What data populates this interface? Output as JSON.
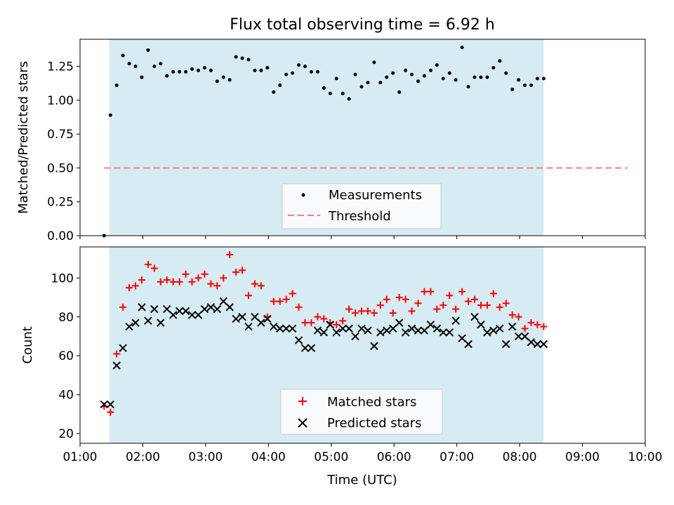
{
  "chart_data": [
    {
      "type": "scatter",
      "title": "Flux total observing time = 6.92 h",
      "xlabel": "",
      "ylabel": "Matched/Predicted stars",
      "xlim": [
        "01:00",
        "10:00"
      ],
      "ylim": [
        0,
        1.45
      ],
      "yticks": [
        "0.00",
        "0.25",
        "0.50",
        "0.75",
        "1.00",
        "1.25"
      ],
      "shaded_region": {
        "x0": "01:28",
        "x1": "08:23",
        "color": "#add8e6"
      },
      "legend": {
        "placement": "bottom-center",
        "entries": [
          "Measurements",
          "Threshold"
        ]
      },
      "series": [
        {
          "name": "Measurements",
          "color": "#000000",
          "marker": "dot",
          "points": [
            [
              "01:23",
              0.0
            ],
            [
              "01:29",
              0.89
            ],
            [
              "01:35",
              1.11
            ],
            [
              "01:41",
              1.33
            ],
            [
              "01:47",
              1.27
            ],
            [
              "01:53",
              1.25
            ],
            [
              "01:59",
              1.17
            ],
            [
              "02:05",
              1.37
            ],
            [
              "02:11",
              1.25
            ],
            [
              "02:17",
              1.27
            ],
            [
              "02:23",
              1.18
            ],
            [
              "02:29",
              1.21
            ],
            [
              "02:35",
              1.21
            ],
            [
              "02:41",
              1.21
            ],
            [
              "02:47",
              1.23
            ],
            [
              "02:53",
              1.22
            ],
            [
              "02:59",
              1.24
            ],
            [
              "03:05",
              1.22
            ],
            [
              "03:11",
              1.14
            ],
            [
              "03:17",
              1.17
            ],
            [
              "03:23",
              1.15
            ],
            [
              "03:29",
              1.32
            ],
            [
              "03:35",
              1.31
            ],
            [
              "03:41",
              1.3
            ],
            [
              "03:47",
              1.22
            ],
            [
              "03:53",
              1.22
            ],
            [
              "03:59",
              1.24
            ],
            [
              "04:05",
              1.06
            ],
            [
              "04:11",
              1.11
            ],
            [
              "04:17",
              1.19
            ],
            [
              "04:23",
              1.2
            ],
            [
              "04:29",
              1.26
            ],
            [
              "04:35",
              1.25
            ],
            [
              "04:41",
              1.21
            ],
            [
              "04:47",
              1.21
            ],
            [
              "04:53",
              1.09
            ],
            [
              "04:59",
              1.05
            ],
            [
              "05:05",
              1.16
            ],
            [
              "05:11",
              1.05
            ],
            [
              "05:17",
              1.01
            ],
            [
              "05:23",
              1.19
            ],
            [
              "05:29",
              1.1
            ],
            [
              "05:35",
              1.13
            ],
            [
              "05:41",
              1.28
            ],
            [
              "05:47",
              1.13
            ],
            [
              "05:53",
              1.17
            ],
            [
              "05:59",
              1.2
            ],
            [
              "06:05",
              1.06
            ],
            [
              "06:11",
              1.22
            ],
            [
              "06:17",
              1.19
            ],
            [
              "06:23",
              1.14
            ],
            [
              "06:29",
              1.18
            ],
            [
              "06:35",
              1.22
            ],
            [
              "06:41",
              1.26
            ],
            [
              "06:47",
              1.16
            ],
            [
              "06:53",
              1.2
            ],
            [
              "06:59",
              1.15
            ],
            [
              "07:05",
              1.39
            ],
            [
              "07:11",
              1.1
            ],
            [
              "07:17",
              1.17
            ],
            [
              "07:23",
              1.17
            ],
            [
              "07:29",
              1.17
            ],
            [
              "07:35",
              1.24
            ],
            [
              "07:41",
              1.29
            ],
            [
              "07:47",
              1.2
            ],
            [
              "07:53",
              1.08
            ],
            [
              "07:59",
              1.15
            ],
            [
              "08:05",
              1.11
            ],
            [
              "08:11",
              1.11
            ],
            [
              "08:17",
              1.16
            ],
            [
              "08:23",
              1.16
            ]
          ]
        },
        {
          "name": "Threshold",
          "color": "#f08080",
          "style": "dashed",
          "points": [
            [
              "01:23",
              0.5
            ],
            [
              "09:43",
              0.5
            ]
          ]
        }
      ]
    },
    {
      "type": "scatter",
      "title": "",
      "xlabel": "Time (UTC)",
      "ylabel": "Count",
      "xlim": [
        "01:00",
        "10:00"
      ],
      "ylim": [
        15,
        116
      ],
      "xticks": [
        "01:00",
        "02:00",
        "03:00",
        "04:00",
        "05:00",
        "06:00",
        "07:00",
        "08:00",
        "09:00",
        "10:00"
      ],
      "yticks": [
        "20",
        "40",
        "60",
        "80",
        "100"
      ],
      "shaded_region": {
        "x0": "01:28",
        "x1": "08:23",
        "color": "#add8e6"
      },
      "legend": {
        "placement": "bottom-center",
        "entries": [
          "Matched stars",
          "Predicted stars"
        ]
      },
      "series": [
        {
          "name": "Matched stars",
          "color": "#ff0000",
          "marker": "plus",
          "points": [
            [
              "01:23",
              34
            ],
            [
              "01:29",
              31
            ],
            [
              "01:35",
              61
            ],
            [
              "01:41",
              85
            ],
            [
              "01:47",
              95
            ],
            [
              "01:53",
              96
            ],
            [
              "01:59",
              99
            ],
            [
              "02:05",
              107
            ],
            [
              "02:11",
              105
            ],
            [
              "02:17",
              98
            ],
            [
              "02:23",
              99
            ],
            [
              "02:29",
              98
            ],
            [
              "02:35",
              98
            ],
            [
              "02:41",
              102
            ],
            [
              "02:47",
              98
            ],
            [
              "02:53",
              100
            ],
            [
              "02:59",
              102
            ],
            [
              "03:05",
              97
            ],
            [
              "03:11",
              96
            ],
            [
              "03:17",
              100
            ],
            [
              "03:23",
              112
            ],
            [
              "03:29",
              103
            ],
            [
              "03:35",
              104
            ],
            [
              "03:41",
              91
            ],
            [
              "03:47",
              97
            ],
            [
              "03:53",
              96
            ],
            [
              "03:59",
              80
            ],
            [
              "04:05",
              88
            ],
            [
              "04:11",
              88
            ],
            [
              "04:17",
              89
            ],
            [
              "04:23",
              92
            ],
            [
              "04:29",
              85
            ],
            [
              "04:35",
              77
            ],
            [
              "04:41",
              77
            ],
            [
              "04:47",
              80
            ],
            [
              "04:53",
              79
            ],
            [
              "04:59",
              77
            ],
            [
              "05:05",
              76
            ],
            [
              "05:11",
              78
            ],
            [
              "05:17",
              84
            ],
            [
              "05:23",
              82
            ],
            [
              "05:29",
              83
            ],
            [
              "05:35",
              83
            ],
            [
              "05:41",
              82
            ],
            [
              "05:47",
              86
            ],
            [
              "05:53",
              89
            ],
            [
              "05:59",
              82
            ],
            [
              "06:05",
              90
            ],
            [
              "06:11",
              89
            ],
            [
              "06:17",
              83
            ],
            [
              "06:23",
              87
            ],
            [
              "06:29",
              93
            ],
            [
              "06:35",
              93
            ],
            [
              "06:41",
              84
            ],
            [
              "06:47",
              86
            ],
            [
              "06:53",
              91
            ],
            [
              "06:59",
              84
            ],
            [
              "07:05",
              93
            ],
            [
              "07:11",
              88
            ],
            [
              "07:17",
              89
            ],
            [
              "07:23",
              86
            ],
            [
              "07:29",
              86
            ],
            [
              "07:35",
              92
            ],
            [
              "07:41",
              85
            ],
            [
              "07:47",
              87
            ],
            [
              "07:53",
              81
            ],
            [
              "07:59",
              80
            ],
            [
              "08:05",
              74
            ],
            [
              "08:11",
              77
            ],
            [
              "08:17",
              76
            ],
            [
              "08:23",
              75
            ]
          ]
        },
        {
          "name": "Predicted stars",
          "color": "#000000",
          "marker": "x",
          "points": [
            [
              "01:23",
              35
            ],
            [
              "01:29",
              35
            ],
            [
              "01:35",
              55
            ],
            [
              "01:41",
              64
            ],
            [
              "01:47",
              75
            ],
            [
              "01:53",
              77
            ],
            [
              "01:59",
              85
            ],
            [
              "02:05",
              78
            ],
            [
              "02:11",
              84
            ],
            [
              "02:17",
              77
            ],
            [
              "02:23",
              84
            ],
            [
              "02:29",
              81
            ],
            [
              "02:35",
              83
            ],
            [
              "02:41",
              83
            ],
            [
              "02:47",
              81
            ],
            [
              "02:53",
              81
            ],
            [
              "02:59",
              84
            ],
            [
              "03:05",
              85
            ],
            [
              "03:11",
              84
            ],
            [
              "03:17",
              88
            ],
            [
              "03:23",
              85
            ],
            [
              "03:29",
              79
            ],
            [
              "03:35",
              80
            ],
            [
              "03:41",
              75
            ],
            [
              "03:47",
              80
            ],
            [
              "03:53",
              77
            ],
            [
              "03:59",
              79
            ],
            [
              "04:05",
              75
            ],
            [
              "04:11",
              74
            ],
            [
              "04:17",
              74
            ],
            [
              "04:23",
              74
            ],
            [
              "04:29",
              68
            ],
            [
              "04:35",
              64
            ],
            [
              "04:41",
              64
            ],
            [
              "04:47",
              73
            ],
            [
              "04:53",
              72
            ],
            [
              "04:59",
              76
            ],
            [
              "05:05",
              72
            ],
            [
              "05:11",
              74
            ],
            [
              "05:17",
              74
            ],
            [
              "05:23",
              70
            ],
            [
              "05:29",
              74
            ],
            [
              "05:35",
              73
            ],
            [
              "05:41",
              65
            ],
            [
              "05:47",
              72
            ],
            [
              "05:53",
              73
            ],
            [
              "05:59",
              74
            ],
            [
              "06:05",
              77
            ],
            [
              "06:11",
              72
            ],
            [
              "06:17",
              74
            ],
            [
              "06:23",
              73
            ],
            [
              "06:29",
              73
            ],
            [
              "06:35",
              76
            ],
            [
              "06:41",
              74
            ],
            [
              "06:47",
              72
            ],
            [
              "06:53",
              72
            ],
            [
              "06:59",
              78
            ],
            [
              "07:05",
              69
            ],
            [
              "07:11",
              66
            ],
            [
              "07:17",
              80
            ],
            [
              "07:23",
              76
            ],
            [
              "07:29",
              72
            ],
            [
              "07:35",
              73
            ],
            [
              "07:41",
              74
            ],
            [
              "07:47",
              66
            ],
            [
              "07:53",
              75
            ],
            [
              "07:59",
              70
            ],
            [
              "08:05",
              70
            ],
            [
              "08:11",
              67
            ],
            [
              "08:17",
              66
            ],
            [
              "08:23",
              66
            ]
          ]
        }
      ]
    }
  ]
}
